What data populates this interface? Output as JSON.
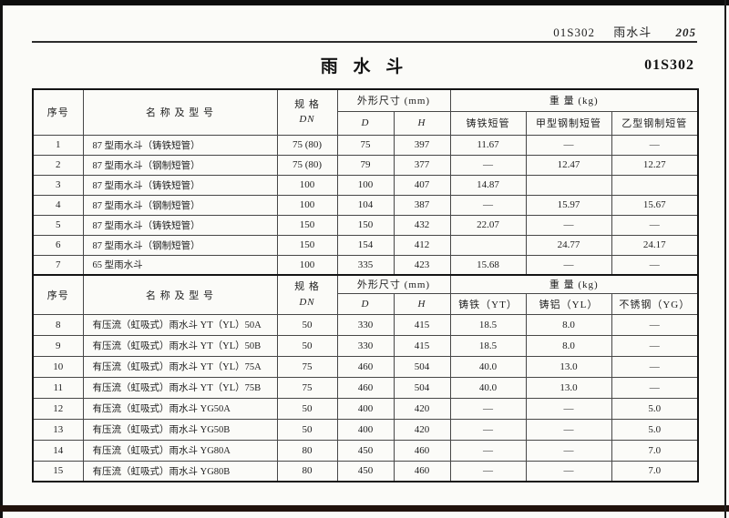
{
  "colors": {
    "page_bg": "#fbfbf8",
    "ink": "#1c1c1c",
    "table_line": "#474747",
    "frame": "#141414"
  },
  "page": {
    "running_header": {
      "code": "01S302",
      "title": "雨水斗",
      "page_number": "205"
    },
    "title": "雨  水  斗",
    "figure_code": "01S302"
  },
  "table": {
    "sections": [
      {
        "headers": {
          "index": "序号",
          "name": "名  称  及  型  号",
          "spec_line1": "规 格",
          "spec_line2": "DN",
          "dims": "外形尺寸 (mm)",
          "dim_d": "D",
          "dim_h": "H",
          "weight": "重  量 (kg)",
          "weight_cols": [
            "铸铁短管",
            "甲型钢制短管",
            "乙型钢制短管"
          ]
        },
        "rows": [
          {
            "index": "1",
            "name": "87 型雨水斗（铸铁短管）",
            "dn": "75 (80)",
            "d": "75",
            "h": "397",
            "w": [
              "11.67",
              "—",
              "—"
            ]
          },
          {
            "index": "2",
            "name": "87 型雨水斗（钢制短管）",
            "dn": "75 (80)",
            "d": "79",
            "h": "377",
            "w": [
              "—",
              "12.47",
              "12.27"
            ]
          },
          {
            "index": "3",
            "name": "87 型雨水斗（铸铁短管）",
            "dn": "100",
            "d": "100",
            "h": "407",
            "w": [
              "14.87",
              "",
              ""
            ]
          },
          {
            "index": "4",
            "name": "87 型雨水斗（钢制短管）",
            "dn": "100",
            "d": "104",
            "h": "387",
            "w": [
              "—",
              "15.97",
              "15.67"
            ]
          },
          {
            "index": "5",
            "name": "87 型雨水斗（铸铁短管）",
            "dn": "150",
            "d": "150",
            "h": "432",
            "w": [
              "22.07",
              "—",
              "—"
            ]
          },
          {
            "index": "6",
            "name": "87 型雨水斗（钢制短管）",
            "dn": "150",
            "d": "154",
            "h": "412",
            "w": [
              "",
              "24.77",
              "24.17"
            ]
          },
          {
            "index": "7",
            "name": "65 型雨水斗",
            "dn": "100",
            "d": "335",
            "h": "423",
            "w": [
              "15.68",
              "—",
              "—"
            ]
          }
        ]
      },
      {
        "headers": {
          "index": "序号",
          "name": "名  称  及  型  号",
          "spec_line1": "规 格",
          "spec_line2": "DN",
          "dims": "外形尺寸 (mm)",
          "dim_d": "D",
          "dim_h": "H",
          "weight": "重  量 (kg)",
          "weight_cols": [
            "铸铁（YT）",
            "铸铝（YL）",
            "不锈钢（YG）"
          ]
        },
        "rows": [
          {
            "index": "8",
            "name": "有压流（虹吸式）雨水斗 YT（YL）50A",
            "dn": "50",
            "d": "330",
            "h": "415",
            "w": [
              "18.5",
              "8.0",
              "—"
            ]
          },
          {
            "index": "9",
            "name": "有压流（虹吸式）雨水斗 YT（YL）50B",
            "dn": "50",
            "d": "330",
            "h": "415",
            "w": [
              "18.5",
              "8.0",
              "—"
            ]
          },
          {
            "index": "10",
            "name": "有压流（虹吸式）雨水斗 YT（YL）75A",
            "dn": "75",
            "d": "460",
            "h": "504",
            "w": [
              "40.0",
              "13.0",
              "—"
            ]
          },
          {
            "index": "11",
            "name": "有压流（虹吸式）雨水斗 YT（YL）75B",
            "dn": "75",
            "d": "460",
            "h": "504",
            "w": [
              "40.0",
              "13.0",
              "—"
            ]
          },
          {
            "index": "12",
            "name": "有压流（虹吸式）雨水斗 YG50A",
            "dn": "50",
            "d": "400",
            "h": "420",
            "w": [
              "—",
              "—",
              "5.0"
            ]
          },
          {
            "index": "13",
            "name": "有压流（虹吸式）雨水斗 YG50B",
            "dn": "50",
            "d": "400",
            "h": "420",
            "w": [
              "—",
              "—",
              "5.0"
            ]
          },
          {
            "index": "14",
            "name": "有压流（虹吸式）雨水斗 YG80A",
            "dn": "80",
            "d": "450",
            "h": "460",
            "w": [
              "—",
              "—",
              "7.0"
            ]
          },
          {
            "index": "15",
            "name": "有压流（虹吸式）雨水斗 YG80B",
            "dn": "80",
            "d": "450",
            "h": "460",
            "w": [
              "—",
              "—",
              "7.0"
            ]
          }
        ]
      }
    ]
  }
}
